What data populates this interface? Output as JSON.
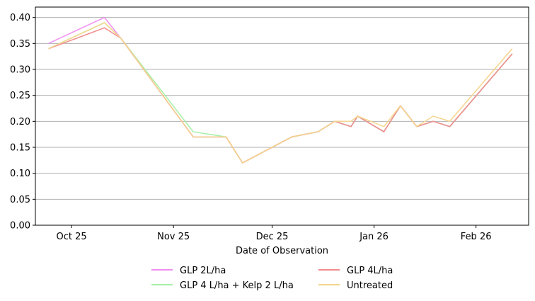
{
  "chart_data": {
    "type": "line",
    "title": "",
    "xlabel": "Date of Observation",
    "ylabel": "",
    "x_type": "date",
    "x_range": [
      "2025-10-14",
      "2026-03-13"
    ],
    "ylim": [
      0,
      0.42
    ],
    "grid": "y-axis horizontal lines",
    "legend_placement": "bottom-center, 2 columns",
    "x_ticks": [
      {
        "date": "2025-10-25",
        "label": "Oct 25"
      },
      {
        "date": "2025-11-25",
        "label": "Nov 25"
      },
      {
        "date": "2025-12-25",
        "label": "Dec 25"
      },
      {
        "date": "2026-01-25",
        "label": "Jan 26"
      },
      {
        "date": "2026-02-25",
        "label": "Feb 26"
      }
    ],
    "y_ticks": [
      {
        "value": 0.0,
        "label": "0.00"
      },
      {
        "value": 0.05,
        "label": "0.05"
      },
      {
        "value": 0.1,
        "label": "0.10"
      },
      {
        "value": 0.15,
        "label": "0.15"
      },
      {
        "value": 0.2,
        "label": "0.20"
      },
      {
        "value": 0.25,
        "label": "0.25"
      },
      {
        "value": 0.3,
        "label": "0.30"
      },
      {
        "value": 0.35,
        "label": "0.35"
      },
      {
        "value": 0.4,
        "label": "0.40"
      }
    ],
    "series": [
      {
        "name": "GLP 2L/ha",
        "color": "#f08ef0",
        "points": [
          {
            "x": "2025-10-18",
            "y": 0.35
          },
          {
            "x": "2025-11-04",
            "y": 0.4
          },
          {
            "x": "2025-11-09",
            "y": 0.36
          },
          {
            "x": "2025-12-01",
            "y": 0.17
          },
          {
            "x": "2025-12-11",
            "y": 0.17
          },
          {
            "x": "2025-12-16",
            "y": 0.12
          },
          {
            "x": "2025-12-31",
            "y": 0.17
          },
          {
            "x": "2026-01-08",
            "y": 0.18
          },
          {
            "x": "2026-01-13",
            "y": 0.2
          },
          {
            "x": "2026-01-18",
            "y": 0.19
          },
          {
            "x": "2026-01-20",
            "y": 0.21
          },
          {
            "x": "2026-01-28",
            "y": 0.18
          },
          {
            "x": "2026-02-02",
            "y": 0.23
          },
          {
            "x": "2026-02-07",
            "y": 0.19
          },
          {
            "x": "2026-02-12",
            "y": 0.2
          },
          {
            "x": "2026-02-17",
            "y": 0.19
          },
          {
            "x": "2026-03-08",
            "y": 0.33
          }
        ]
      },
      {
        "name": "GLP 4 L/ha + Kelp 2 L/ha",
        "color": "#a6f0a6",
        "points": [
          {
            "x": "2025-10-18",
            "y": 0.34
          },
          {
            "x": "2025-11-04",
            "y": 0.39
          },
          {
            "x": "2025-11-09",
            "y": 0.36
          },
          {
            "x": "2025-12-01",
            "y": 0.18
          },
          {
            "x": "2025-12-11",
            "y": 0.17
          },
          {
            "x": "2025-12-16",
            "y": 0.12
          },
          {
            "x": "2025-12-31",
            "y": 0.17
          },
          {
            "x": "2026-01-08",
            "y": 0.18
          },
          {
            "x": "2026-01-13",
            "y": 0.2
          },
          {
            "x": "2026-01-18",
            "y": 0.19
          },
          {
            "x": "2026-01-20",
            "y": 0.21
          },
          {
            "x": "2026-01-28",
            "y": 0.18
          },
          {
            "x": "2026-02-02",
            "y": 0.23
          },
          {
            "x": "2026-02-07",
            "y": 0.19
          },
          {
            "x": "2026-02-12",
            "y": 0.2
          },
          {
            "x": "2026-02-17",
            "y": 0.19
          },
          {
            "x": "2026-03-08",
            "y": 0.33
          }
        ]
      },
      {
        "name": "GLP 4L/ha",
        "color": "#f08c8c",
        "points": [
          {
            "x": "2025-10-18",
            "y": 0.34
          },
          {
            "x": "2025-11-04",
            "y": 0.38
          },
          {
            "x": "2025-11-09",
            "y": 0.36
          },
          {
            "x": "2025-12-01",
            "y": 0.17
          },
          {
            "x": "2025-12-11",
            "y": 0.17
          },
          {
            "x": "2025-12-16",
            "y": 0.12
          },
          {
            "x": "2025-12-31",
            "y": 0.17
          },
          {
            "x": "2026-01-08",
            "y": 0.18
          },
          {
            "x": "2026-01-13",
            "y": 0.2
          },
          {
            "x": "2026-01-18",
            "y": 0.19
          },
          {
            "x": "2026-01-20",
            "y": 0.21
          },
          {
            "x": "2026-01-28",
            "y": 0.18
          },
          {
            "x": "2026-02-02",
            "y": 0.23
          },
          {
            "x": "2026-02-07",
            "y": 0.19
          },
          {
            "x": "2026-02-12",
            "y": 0.2
          },
          {
            "x": "2026-02-17",
            "y": 0.19
          },
          {
            "x": "2026-03-08",
            "y": 0.33
          }
        ]
      },
      {
        "name": "Untreated",
        "color": "#f5d58e",
        "points": [
          {
            "x": "2025-10-18",
            "y": 0.34
          },
          {
            "x": "2025-11-04",
            "y": 0.39
          },
          {
            "x": "2025-11-09",
            "y": 0.36
          },
          {
            "x": "2025-12-01",
            "y": 0.17
          },
          {
            "x": "2025-12-11",
            "y": 0.17
          },
          {
            "x": "2025-12-16",
            "y": 0.12
          },
          {
            "x": "2025-12-31",
            "y": 0.17
          },
          {
            "x": "2026-01-08",
            "y": 0.18
          },
          {
            "x": "2026-01-13",
            "y": 0.2
          },
          {
            "x": "2026-01-18",
            "y": 0.2
          },
          {
            "x": "2026-01-20",
            "y": 0.21
          },
          {
            "x": "2026-01-28",
            "y": 0.19
          },
          {
            "x": "2026-02-02",
            "y": 0.23
          },
          {
            "x": "2026-02-07",
            "y": 0.19
          },
          {
            "x": "2026-02-12",
            "y": 0.21
          },
          {
            "x": "2026-02-17",
            "y": 0.2
          },
          {
            "x": "2026-03-08",
            "y": 0.34
          }
        ]
      }
    ],
    "legend": [
      {
        "series_index": 0,
        "label": "GLP 2L/ha"
      },
      {
        "series_index": 1,
        "label": "GLP 4 L/ha + Kelp 2 L/ha"
      },
      {
        "series_index": 2,
        "label": "GLP 4L/ha"
      },
      {
        "series_index": 3,
        "label": "Untreated"
      }
    ]
  }
}
